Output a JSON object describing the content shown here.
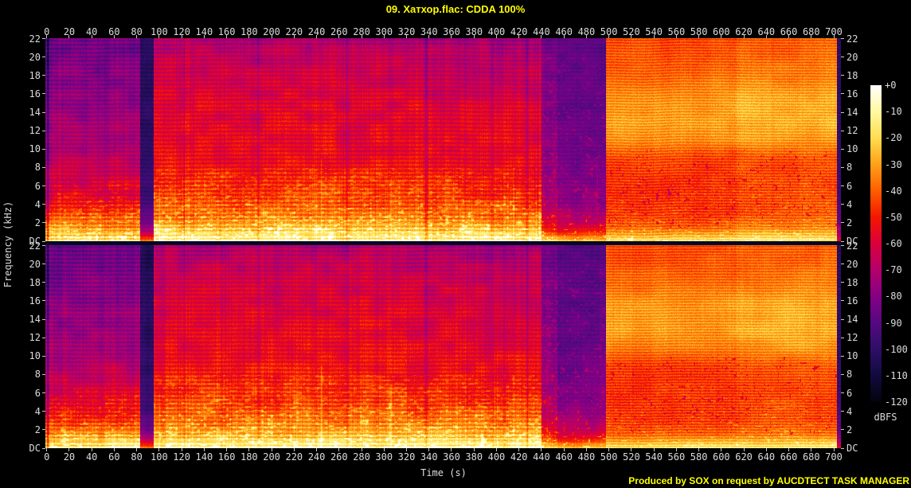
{
  "title": "09. Хатхор.flac: CDDA 100%",
  "footer": "Produced by SOX on request by AUCDTECT TASK MANAGER",
  "colors": {
    "background": "#000000",
    "title_text": "#ffff00",
    "footer_text": "#ffff00",
    "axis_text": "#dcdcdc",
    "tick_mark": "#c8c8c8",
    "channel_separator": "#060628"
  },
  "axes": {
    "time_label": "Time (s)",
    "freq_label": "Frequency (kHz)",
    "db_label": "dBFS",
    "time_ticks": [
      "0",
      "20",
      "40",
      "60",
      "80",
      "100",
      "120",
      "140",
      "160",
      "180",
      "200",
      "220",
      "240",
      "260",
      "280",
      "300",
      "320",
      "340",
      "360",
      "380",
      "400",
      "420",
      "440",
      "460",
      "480",
      "500",
      "520",
      "540",
      "560",
      "580",
      "600",
      "620",
      "640",
      "660",
      "680",
      "700"
    ],
    "freq_ticks": [
      "22",
      "20",
      "18",
      "16",
      "14",
      "12",
      "10",
      "8",
      "6",
      "4",
      "2",
      "DC"
    ],
    "db_ticks": [
      "+0",
      "-10",
      "-20",
      "-30",
      "-40",
      "-50",
      "-60",
      "-70",
      "-80",
      "-90",
      "-100",
      "-110",
      "-120"
    ]
  },
  "chart_data": {
    "type": "heatmap",
    "subtype": "audio-spectrogram",
    "title": "09. Хатхор.flac: CDDA 100%",
    "xlabel": "Time (s)",
    "ylabel": "Frequency (kHz)",
    "x_range_s": [
      0,
      706
    ],
    "y_range_khz": [
      0,
      22.05
    ],
    "x_tick_step_s": 20,
    "y_tick_step_khz": 2,
    "channels": 2,
    "colorbar": {
      "label": "dBFS",
      "top_value": 0,
      "bottom_value": -120,
      "tick_step": 10
    },
    "palette": [
      [
        255,
        255,
        255
      ],
      [
        255,
        249,
        160
      ],
      [
        255,
        221,
        80
      ],
      [
        255,
        160,
        24
      ],
      [
        255,
        94,
        0
      ],
      [
        244,
        22,
        0
      ],
      [
        219,
        0,
        58
      ],
      [
        180,
        0,
        106
      ],
      [
        133,
        0,
        133
      ],
      [
        86,
        8,
        130
      ],
      [
        46,
        14,
        104
      ],
      [
        18,
        10,
        62
      ],
      [
        3,
        3,
        12
      ]
    ],
    "spectrogram": {
      "x_offset": 1.7,
      "x_scale": 1.4119,
      "f_max": 22.05,
      "segments": [
        {
          "name": "track-1",
          "t0": -5,
          "t1": 82.5,
          "pts": [
            [
              0,
              -14
            ],
            [
              0.4,
              -20
            ],
            [
              1,
              -28
            ],
            [
              2,
              -40
            ],
            [
              3,
              -48
            ],
            [
              5,
              -58
            ],
            [
              8,
              -66
            ],
            [
              12,
              -74
            ],
            [
              16,
              -79
            ],
            [
              20,
              -84
            ],
            [
              22.05,
              -86
            ]
          ],
          "vert": 6,
          "stripe": 5,
          "stripe_w": 1.26,
          "grain": 4,
          "harm": 7,
          "cloud": {
            "amp": 5,
            "sx": 22,
            "sy": 14
          },
          "speckle": {
            "gain": 22,
            "thr": 0.6,
            "fmax": 6.5,
            "sx": 4,
            "sy": 2.2
          }
        },
        {
          "name": "gap-1",
          "t0": 82.5,
          "t1": 95,
          "pts": [
            [
              0,
              -35
            ],
            [
              0.4,
              -50
            ],
            [
              1,
              -68
            ],
            [
              2,
              -82
            ],
            [
              4,
              -94
            ],
            [
              8,
              -100
            ],
            [
              22.05,
              -104
            ]
          ],
          "vert": 3,
          "stripe": 2,
          "stripe_w": 1.26,
          "grain": 3,
          "cloud": {
            "amp": 3,
            "sx": 16,
            "sy": 12
          }
        },
        {
          "name": "track-2",
          "t0": 95,
          "t1": 337,
          "pts": [
            [
              0,
              -11
            ],
            [
              0.4,
              -16
            ],
            [
              1,
              -22
            ],
            [
              2,
              -32
            ],
            [
              3,
              -38
            ],
            [
              5,
              -46
            ],
            [
              8,
              -52
            ],
            [
              12,
              -57
            ],
            [
              16,
              -60
            ],
            [
              20,
              -66
            ],
            [
              22.05,
              -72
            ]
          ],
          "vert": 6,
          "stripe": 5,
          "stripe_w": 1.26,
          "grain": 4,
          "harm": 6,
          "cloud": {
            "amp": 5,
            "sx": 22,
            "sy": 14
          },
          "speckle": {
            "gain": 24,
            "thr": 0.58,
            "fmax": 8,
            "sx": 4,
            "sy": 2.2
          }
        },
        {
          "name": "track-3",
          "t0": 337,
          "t1": 440,
          "pts": [
            [
              0,
              -12
            ],
            [
              0.4,
              -17
            ],
            [
              1,
              -23
            ],
            [
              2,
              -33
            ],
            [
              3,
              -39
            ],
            [
              5,
              -47
            ],
            [
              8,
              -53
            ],
            [
              12,
              -58
            ],
            [
              16,
              -62
            ],
            [
              20,
              -68
            ],
            [
              22.05,
              -74
            ]
          ],
          "vert": 6,
          "stripe": 5,
          "stripe_w": 1.26,
          "grain": 4,
          "harm": 6,
          "cloud": {
            "amp": 5,
            "sx": 22,
            "sy": 14
          },
          "speckle": {
            "gain": 24,
            "thr": 0.6,
            "fmax": 8,
            "sx": 4,
            "sy": 2.2
          }
        },
        {
          "name": "decay",
          "t0": 440,
          "t1": 454,
          "pts": [
            [
              0,
              -18
            ],
            [
              0.5,
              -30
            ],
            [
              1,
              -44
            ],
            [
              2,
              -58
            ],
            [
              4,
              -70
            ],
            [
              8,
              -76
            ],
            [
              14,
              -80
            ],
            [
              22.05,
              -84
            ]
          ],
          "vert": 4,
          "stripe": 3,
          "stripe_w": 1.26,
          "grain": 4,
          "cloud": {
            "amp": 4,
            "sx": 18,
            "sy": 12
          },
          "speckle": {
            "gain": 26,
            "thr": 0.66,
            "fmax": 20,
            "sx": 3,
            "sy": 2.5
          }
        },
        {
          "name": "quiet",
          "t0": 454,
          "t1": 497,
          "pts": [
            [
              0,
              -22
            ],
            [
              0.5,
              -35
            ],
            [
              1,
              -50
            ],
            [
              2,
              -66
            ],
            [
              4,
              -78
            ],
            [
              8,
              -84
            ],
            [
              14,
              -87
            ],
            [
              22.05,
              -89
            ]
          ],
          "vert": 3,
          "stripe": 2,
          "stripe_w": 1.26,
          "grain": 3,
          "cloud": {
            "amp": 4,
            "sx": 18,
            "sy": 12
          },
          "speckle": {
            "gain": 26,
            "thr": 0.74,
            "fmax": 20,
            "sx": 3.5,
            "sy": 2.5
          }
        },
        {
          "name": "loud-1",
          "t0": 497,
          "t1": 613,
          "pts": [
            [
              0,
              -14
            ],
            [
              0.3,
              -19
            ],
            [
              0.8,
              -28
            ],
            [
              1.5,
              -38
            ],
            [
              3,
              -45
            ],
            [
              6,
              -47
            ],
            [
              9,
              -44
            ],
            [
              10,
              -39
            ],
            [
              11,
              -34
            ],
            [
              13,
              -30
            ],
            [
              15,
              -30
            ],
            [
              16,
              -32
            ],
            [
              18,
              -38
            ],
            [
              20,
              -41
            ],
            [
              22.05,
              -43
            ]
          ],
          "vert": 2.5,
          "stripe": 5,
          "stripe_w": 1.8,
          "grain": 3.5,
          "cloud": {
            "amp": 2.5,
            "sx": 30,
            "sy": 18
          },
          "speckle": {
            "gain": 16,
            "thr": 0.72,
            "fmax": 7,
            "sx": 4,
            "sy": 1.6
          },
          "dots": {
            "gain": -26,
            "thr": 0.8,
            "fmin": 1.5,
            "fmax": 10,
            "s": 2.5
          }
        },
        {
          "name": "loud-2",
          "t0": 613,
          "t1": 702.5,
          "pts": [
            [
              0,
              -12
            ],
            [
              0.3,
              -17
            ],
            [
              0.8,
              -25
            ],
            [
              1.5,
              -35
            ],
            [
              3,
              -42
            ],
            [
              6,
              -44
            ],
            [
              9,
              -41
            ],
            [
              10,
              -36
            ],
            [
              11,
              -31
            ],
            [
              13,
              -27
            ],
            [
              15,
              -27
            ],
            [
              16,
              -29
            ],
            [
              18,
              -35
            ],
            [
              20,
              -38
            ],
            [
              22.05,
              -40
            ]
          ],
          "vert": 2.5,
          "stripe": 5,
          "stripe_w": 1.8,
          "grain": 3.5,
          "cloud": {
            "amp": 2.5,
            "sx": 30,
            "sy": 18
          },
          "speckle": {
            "gain": 16,
            "thr": 0.72,
            "fmax": 7,
            "sx": 4,
            "sy": 1.6
          },
          "dots": {
            "gain": -24,
            "thr": 0.82,
            "fmin": 1.5,
            "fmax": 10,
            "s": 2.5
          }
        },
        {
          "name": "end",
          "t0": 702.5,
          "t1": 720,
          "pts": [
            [
              0,
              -55
            ],
            [
              0.8,
              -72
            ],
            [
              2,
              -86
            ],
            [
              5,
              -95
            ],
            [
              10,
              -99
            ],
            [
              22.05,
              -101
            ]
          ],
          "vert": 3,
          "stripe": 2,
          "stripe_w": 1.26,
          "grain": 3,
          "speckle": {
            "gain": 26,
            "thr": 0.82,
            "fmax": 21,
            "sx": 2.5,
            "sy": 2.5
          }
        }
      ],
      "dips": [
        [
          0.7,
          1.0,
          -24
        ],
        [
          122,
          0.9,
          -7
        ],
        [
          188,
          1.0,
          -9
        ],
        [
          267,
          1.0,
          -8
        ],
        [
          337,
          1.3,
          -11
        ],
        [
          396,
          1.0,
          -7
        ],
        [
          427,
          1.3,
          -10
        ]
      ],
      "streaks": [
        [
          100,
          0.8,
          6,
          6
        ],
        [
          244,
          0.9,
          9,
          9
        ],
        [
          306,
          0.9,
          8,
          7
        ],
        [
          415,
          0.9,
          8,
          8
        ]
      ]
    }
  }
}
